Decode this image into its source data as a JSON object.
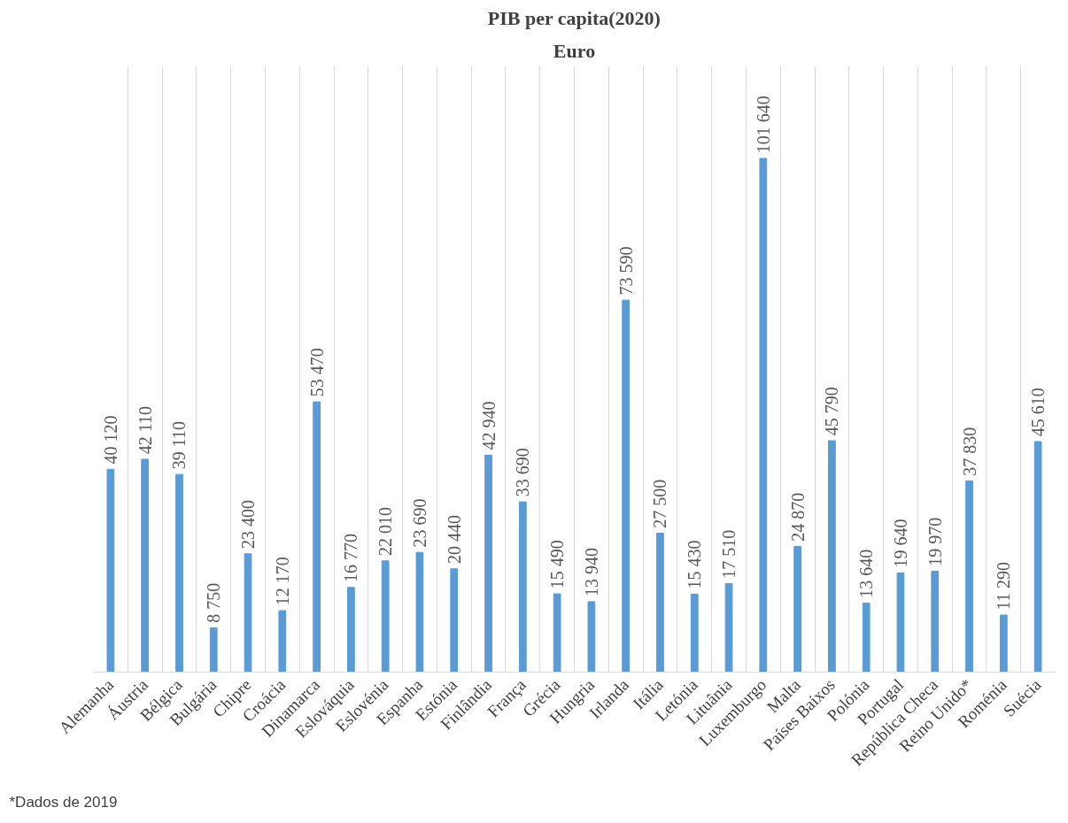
{
  "chart_data": {
    "type": "bar",
    "title": "PIB per capita(2020)",
    "subtitle": "Euro",
    "categories": [
      "Alemanha",
      "Áustria",
      "Bélgica",
      "Bulgária",
      "Chipre",
      "Croácia",
      "Dinamarca",
      "Eslováquia",
      "Eslovénia",
      "Espanha",
      "Estónia",
      "Finlândia",
      "França",
      "Grécia",
      "Hungria",
      "Irlanda",
      "Itália",
      "Letónia",
      "Lituânia",
      "Luxemburgo",
      "Malta",
      "Países Baixos",
      "Polónia",
      "Portugal",
      "República Checa",
      "Reino Unido*",
      "Roménia",
      "Suécia"
    ],
    "values": [
      40120,
      42110,
      39110,
      8750,
      23400,
      12170,
      53470,
      16770,
      22010,
      23690,
      20440,
      42940,
      33690,
      15490,
      13940,
      73590,
      27500,
      15430,
      17510,
      101640,
      24870,
      45790,
      13640,
      19640,
      19970,
      37830,
      11290,
      45610
    ],
    "value_labels": [
      "40 120",
      "42 110",
      "39 110",
      "8 750",
      "23 400",
      "12 170",
      "53 470",
      "16 770",
      "22 010",
      "23 690",
      "20 440",
      "42 940",
      "33 690",
      "15 490",
      "13 940",
      "73 590",
      "27 500",
      "15 430",
      "17 510",
      "101 640",
      "24 870",
      "45 790",
      "13 640",
      "19 640",
      "19 970",
      "37 830",
      "11 290",
      "45 610"
    ],
    "color": "#5b9bd5",
    "grid": "x",
    "annotations": [
      "*Dados de 2019"
    ]
  }
}
